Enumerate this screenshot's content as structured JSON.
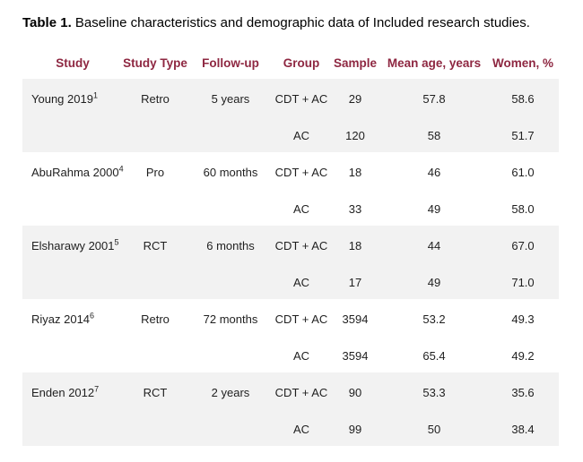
{
  "caption": {
    "label": "Table 1.",
    "text": " Baseline characteristics and demographic data of Included research studies."
  },
  "colors": {
    "header_text": "#8E2741",
    "alt_row_bg": "#F2F2F2",
    "body_text": "#1F1F1F"
  },
  "table": {
    "headers": [
      "Study",
      "Study Type",
      "Follow-up",
      "Group",
      "Sample",
      "Mean age, years",
      "Women, %"
    ],
    "groups": [
      {
        "study": "Young 2019",
        "ref": "1",
        "type": "Retro",
        "follow_up": "5 years",
        "rows": [
          {
            "group": "CDT + AC",
            "sample": "29",
            "mean_age": "57.8",
            "women": "58.6"
          },
          {
            "group": "AC",
            "sample": "120",
            "mean_age": "58",
            "women": "51.7"
          }
        ]
      },
      {
        "study": "AbuRahma 2000",
        "ref": "4",
        "type": "Pro",
        "follow_up": "60 months",
        "rows": [
          {
            "group": "CDT + AC",
            "sample": "18",
            "mean_age": "46",
            "women": "61.0"
          },
          {
            "group": "AC",
            "sample": "33",
            "mean_age": "49",
            "women": "58.0"
          }
        ]
      },
      {
        "study": "Elsharawy 2001",
        "ref": "5",
        "type": "RCT",
        "follow_up": "6 months",
        "rows": [
          {
            "group": "CDT + AC",
            "sample": "18",
            "mean_age": "44",
            "women": "67.0"
          },
          {
            "group": "AC",
            "sample": "17",
            "mean_age": "49",
            "women": "71.0"
          }
        ]
      },
      {
        "study": "Riyaz 2014",
        "ref": "6",
        "type": "Retro",
        "follow_up": "72 months",
        "rows": [
          {
            "group": "CDT + AC",
            "sample": "3594",
            "mean_age": "53.2",
            "women": "49.3"
          },
          {
            "group": "AC",
            "sample": "3594",
            "mean_age": "65.4",
            "women": "49.2"
          }
        ]
      },
      {
        "study": "Enden 2012",
        "ref": "7",
        "type": "RCT",
        "follow_up": "2 years",
        "rows": [
          {
            "group": "CDT + AC",
            "sample": "90",
            "mean_age": "53.3",
            "women": "35.6"
          },
          {
            "group": "AC",
            "sample": "99",
            "mean_age": "50",
            "women": "38.4"
          }
        ]
      }
    ]
  }
}
